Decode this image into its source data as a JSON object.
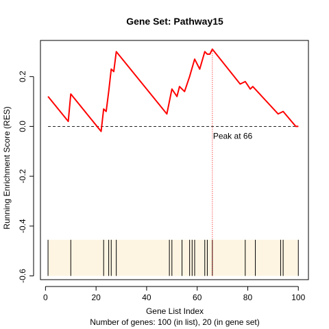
{
  "chart_data": {
    "type": "line",
    "title": "Gene Set:  Pathway15",
    "xlabel": "Gene List Index",
    "ylabel": "Running Enrichment Score (RES)",
    "subtitle": "Number of genes: 100 (in list), 20 (in gene set)",
    "xlim": [
      -2,
      104
    ],
    "ylim": [
      -0.615,
      0.345
    ],
    "x_ticks": [
      0,
      20,
      40,
      60,
      80,
      100
    ],
    "y_ticks": [
      -0.6,
      -0.4,
      -0.2,
      0.0,
      0.2
    ],
    "y_tick_labels": [
      "-0.6",
      "-0.4",
      "-0.2",
      "0.0",
      "0.2"
    ],
    "grid": false,
    "series": [
      {
        "color": "#ff0000",
        "x": [
          1,
          9,
          10,
          22,
          23,
          24,
          25,
          26,
          27,
          28,
          48,
          50,
          52,
          53,
          55,
          57,
          59,
          61,
          63,
          64,
          65,
          66,
          77,
          79,
          81,
          82,
          92,
          94,
          99,
          100
        ],
        "y": [
          0.12,
          0.02,
          0.13,
          -0.02,
          0.07,
          0.06,
          0.14,
          0.23,
          0.22,
          0.3,
          0.05,
          0.15,
          0.12,
          0.16,
          0.14,
          0.2,
          0.27,
          0.23,
          0.3,
          0.29,
          0.29,
          0.31,
          0.17,
          0.18,
          0.15,
          0.16,
          0.05,
          0.06,
          0.0,
          0.0
        ]
      }
    ],
    "zero_line": 0,
    "peak": {
      "x": 66,
      "label": "Peak at 66"
    },
    "hits": {
      "positions": [
        1,
        10,
        23,
        25,
        26,
        28,
        49,
        50,
        54,
        57,
        58,
        59,
        63,
        64,
        66,
        79,
        83,
        93,
        94,
        100
      ],
      "y_bottom": -0.6,
      "y_top": -0.455,
      "band_color": "#fdf5e2",
      "line_color": "#000000"
    }
  }
}
